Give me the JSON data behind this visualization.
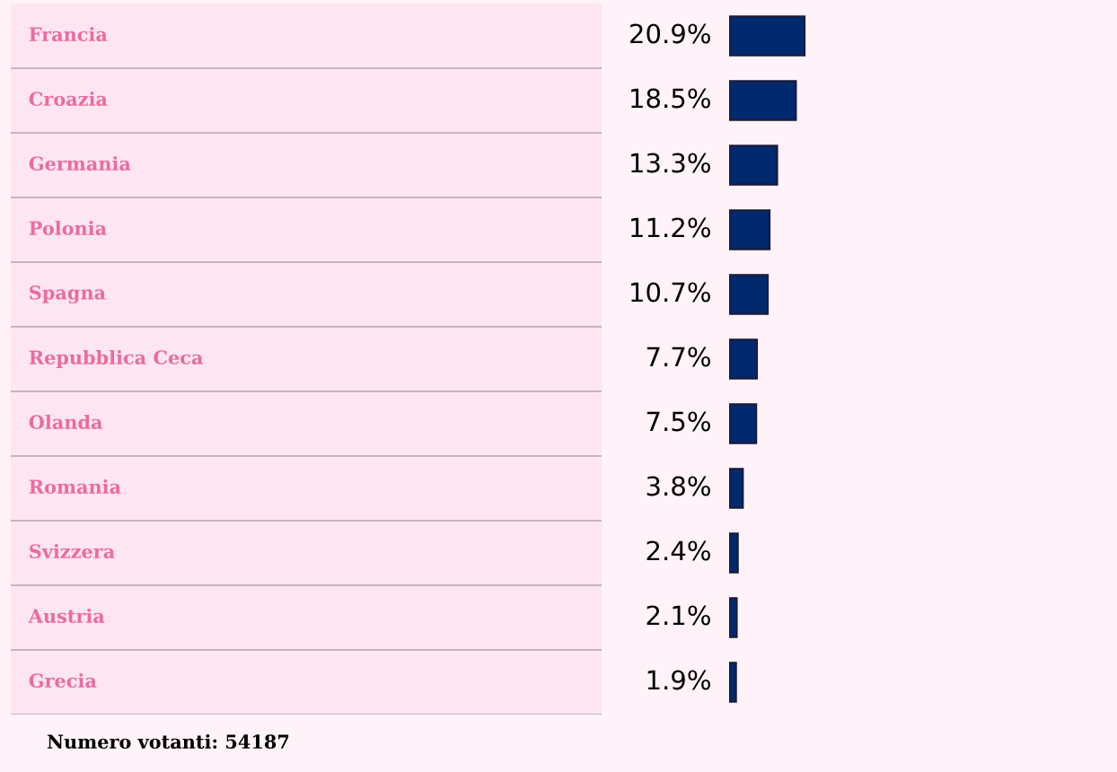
{
  "chart_data": {
    "type": "bar",
    "orientation": "horizontal",
    "categories": [
      "Francia",
      "Croazia",
      "Germania",
      "Polonia",
      "Spagna",
      "Repubblica Ceca",
      "Olanda",
      "Romania",
      "Svizzera",
      "Austria",
      "Grecia"
    ],
    "values": [
      20.9,
      18.5,
      13.3,
      11.2,
      10.7,
      7.7,
      7.5,
      3.8,
      2.4,
      2.1,
      1.9
    ],
    "value_labels": [
      "20.9%",
      "18.5%",
      "13.3%",
      "11.2%",
      "10.7%",
      "7.7%",
      "7.5%",
      "3.8%",
      "2.4%",
      "2.1%",
      "1.9%"
    ],
    "color": "#00296e",
    "annotations": [
      "Numero votanti: 54187"
    ]
  }
}
